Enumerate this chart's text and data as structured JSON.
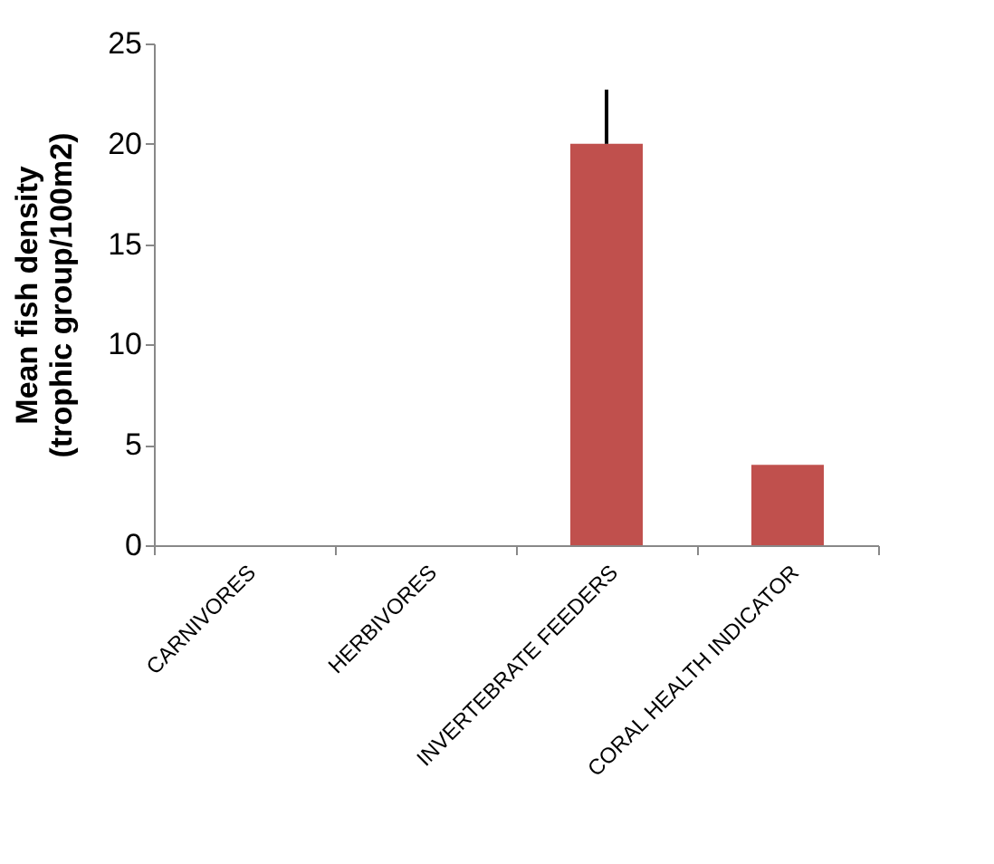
{
  "chart_data": {
    "type": "bar",
    "ylabel": "Mean fish density\n(trophic group/100m2)",
    "categories": [
      "CARNIVORES",
      "HERBIVORES",
      "INVERTEBRATE FEEDERS",
      "CORAL HEALTH INDICATOR"
    ],
    "values": [
      0,
      0,
      20,
      4
    ],
    "errors": [
      null,
      null,
      [
        20,
        22.7
      ],
      null
    ],
    "color": "#c0504d",
    "ylim": [
      0,
      25
    ],
    "yticks": [
      0,
      5,
      10,
      15,
      20,
      25
    ],
    "grid": false
  }
}
